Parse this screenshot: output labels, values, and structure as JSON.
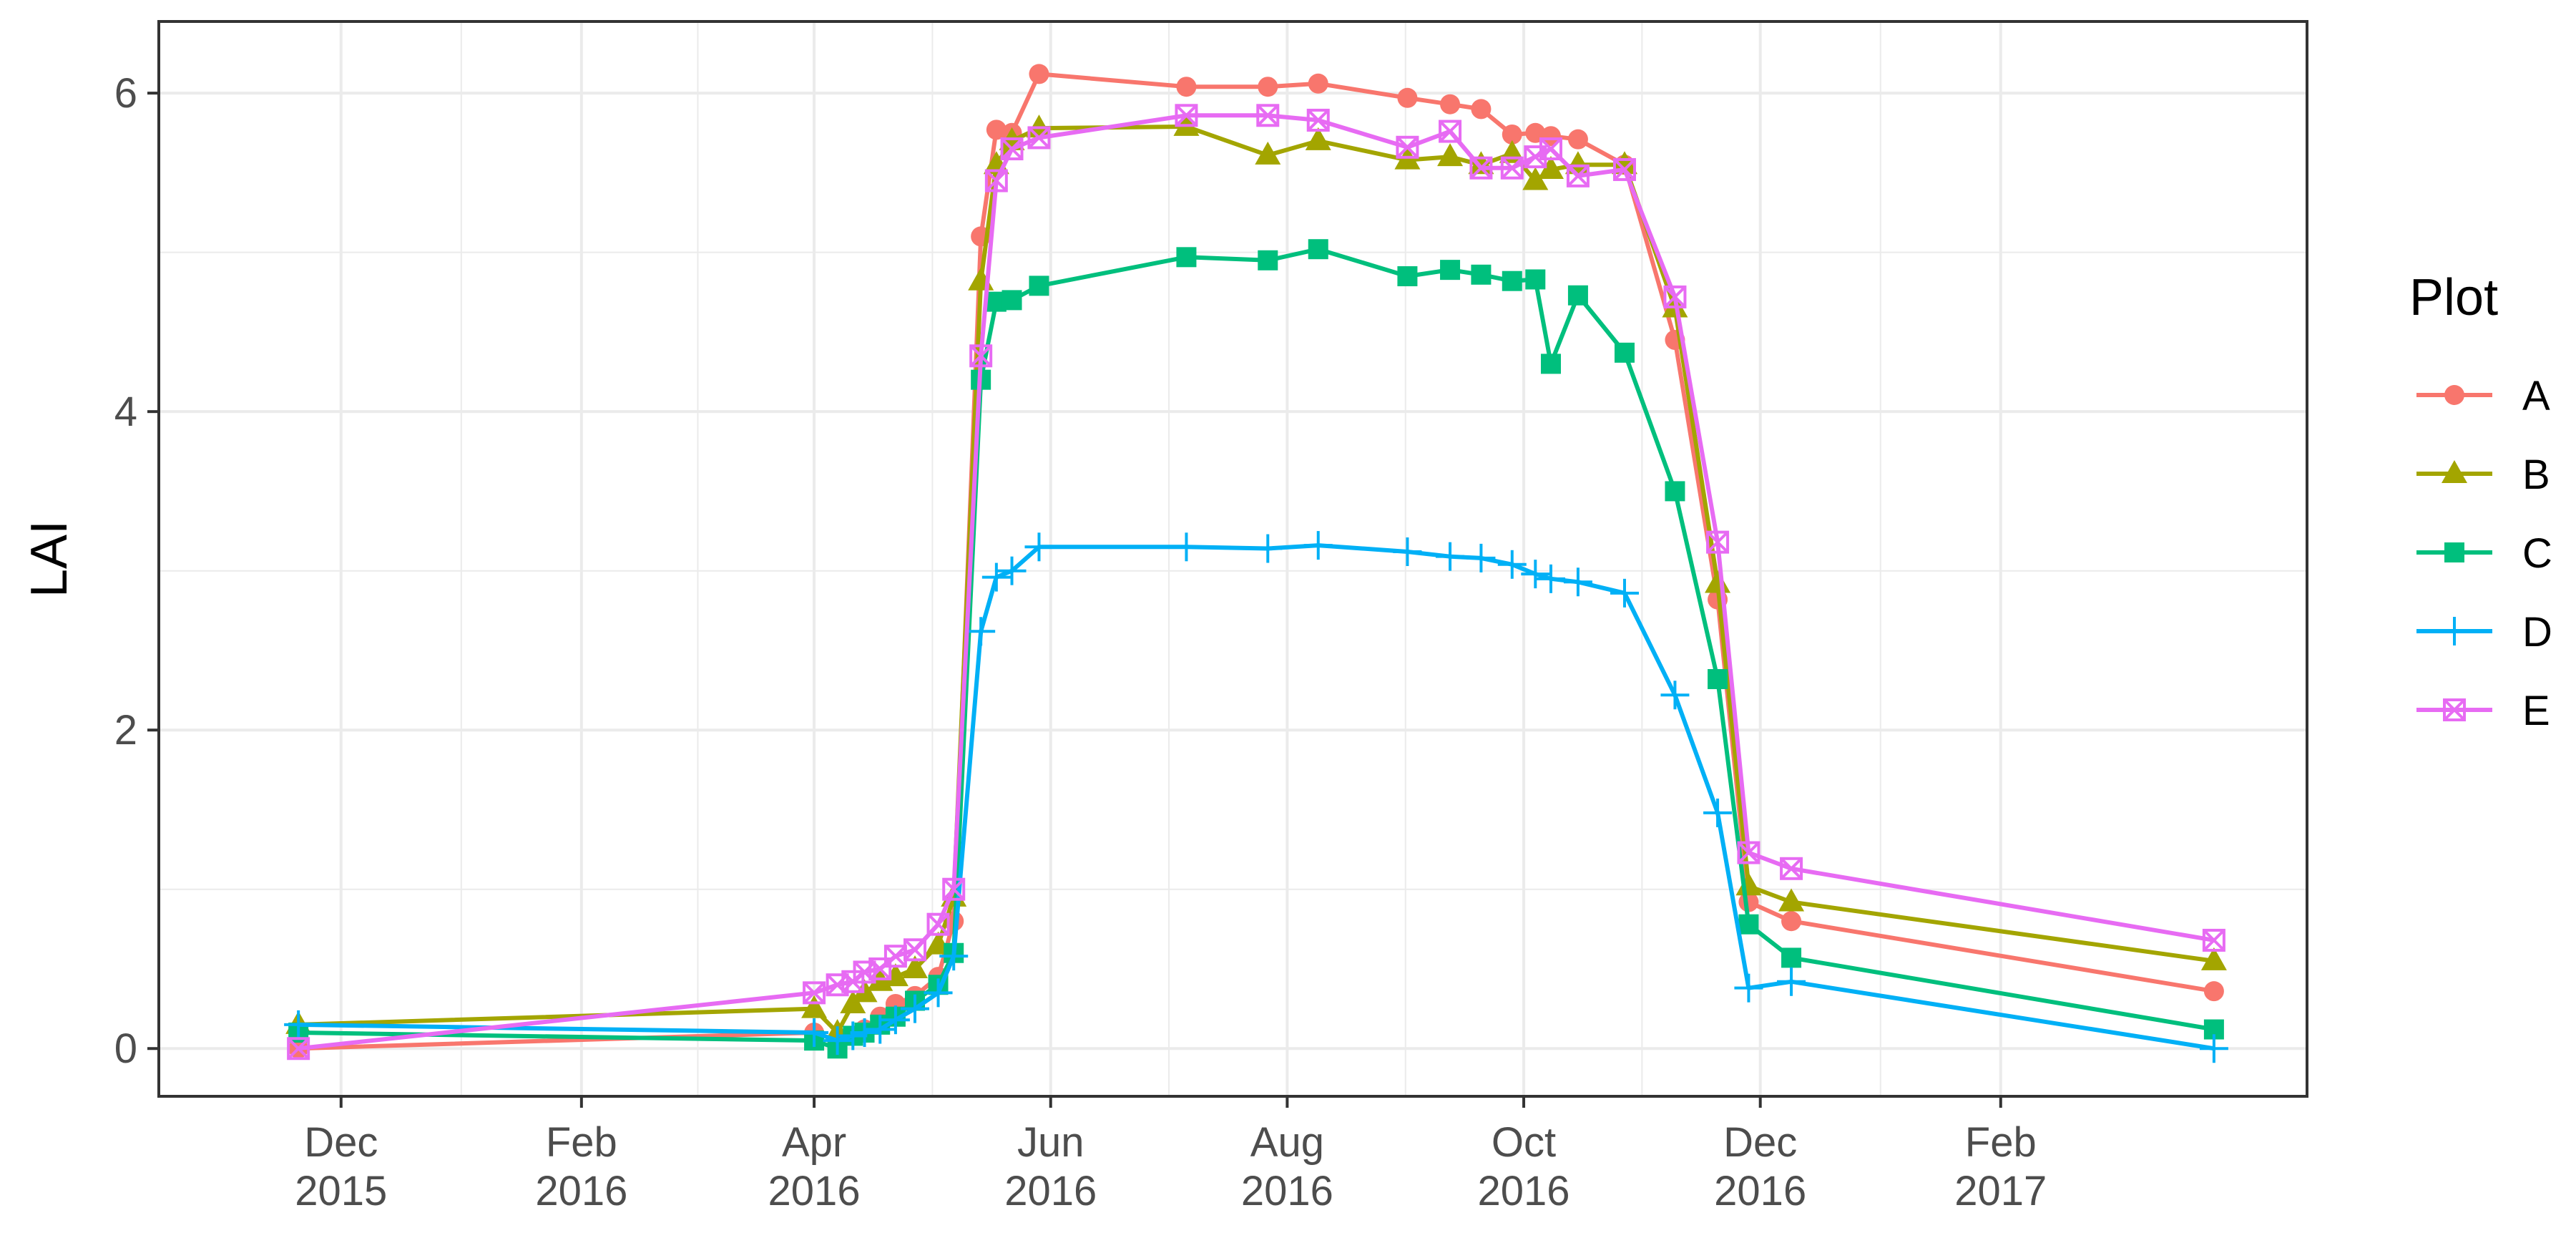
{
  "chart_data": {
    "type": "line",
    "title": "",
    "xlabel": "",
    "ylabel": "LAI",
    "xlim": [
      "2015-10-15",
      "2017-04-21"
    ],
    "ylim": [
      -0.3,
      6.45
    ],
    "y_ticks": [
      0,
      2,
      4,
      6
    ],
    "x_ticks": [
      {
        "date": "2015-12-01",
        "label_line1": "Dec",
        "label_line2": "2015"
      },
      {
        "date": "2016-02-01",
        "label_line1": "Feb",
        "label_line2": "2016"
      },
      {
        "date": "2016-04-01",
        "label_line1": "Apr",
        "label_line2": "2016"
      },
      {
        "date": "2016-06-01",
        "label_line1": "Jun",
        "label_line2": "2016"
      },
      {
        "date": "2016-08-01",
        "label_line1": "Aug",
        "label_line2": "2016"
      },
      {
        "date": "2016-10-01",
        "label_line1": "Oct",
        "label_line2": "2016"
      },
      {
        "date": "2016-12-01",
        "label_line1": "Dec",
        "label_line2": "2016"
      },
      {
        "date": "2017-02-01",
        "label_line1": "Feb",
        "label_line2": "2017"
      }
    ],
    "grid": true,
    "legend": {
      "title": "Plot",
      "position": "right"
    },
    "series": [
      {
        "name": "A",
        "color": "#F8766D",
        "marker": "circle",
        "x": [
          "2015-11-20",
          "2016-04-01",
          "2016-04-07",
          "2016-04-11",
          "2016-04-14",
          "2016-04-18",
          "2016-04-22",
          "2016-04-27",
          "2016-05-03",
          "2016-05-07",
          "2016-05-14",
          "2016-05-18",
          "2016-05-22",
          "2016-05-29",
          "2016-07-06",
          "2016-07-27",
          "2016-08-09",
          "2016-09-01",
          "2016-09-12",
          "2016-09-20",
          "2016-09-28",
          "2016-10-04",
          "2016-10-08",
          "2016-10-15",
          "2016-10-27",
          "2016-11-09",
          "2016-11-20",
          "2016-11-28",
          "2016-12-09",
          "2017-03-28"
        ],
        "y": [
          0.0,
          0.1,
          0.05,
          0.08,
          0.12,
          0.2,
          0.28,
          0.33,
          0.45,
          0.8,
          5.1,
          5.77,
          5.75,
          6.12,
          6.04,
          6.04,
          6.06,
          5.97,
          5.93,
          5.9,
          5.74,
          5.75,
          5.73,
          5.71,
          5.55,
          4.45,
          2.82,
          0.92,
          0.8,
          0.36
        ]
      },
      {
        "name": "B",
        "color": "#A3A500",
        "marker": "triangle",
        "x": [
          "2015-11-20",
          "2016-04-01",
          "2016-04-07",
          "2016-04-11",
          "2016-04-14",
          "2016-04-18",
          "2016-04-22",
          "2016-04-27",
          "2016-05-03",
          "2016-05-07",
          "2016-05-14",
          "2016-05-18",
          "2016-05-22",
          "2016-05-29",
          "2016-07-06",
          "2016-07-27",
          "2016-08-09",
          "2016-09-01",
          "2016-09-12",
          "2016-09-20",
          "2016-09-28",
          "2016-10-04",
          "2016-10-08",
          "2016-10-15",
          "2016-10-27",
          "2016-11-09",
          "2016-11-20",
          "2016-11-28",
          "2016-12-09",
          "2017-03-28"
        ],
        "y": [
          0.15,
          0.25,
          0.1,
          0.28,
          0.35,
          0.42,
          0.45,
          0.5,
          0.65,
          0.95,
          4.82,
          5.55,
          5.7,
          5.78,
          5.79,
          5.61,
          5.7,
          5.58,
          5.6,
          5.55,
          5.62,
          5.45,
          5.52,
          5.55,
          5.55,
          4.65,
          2.92,
          1.02,
          0.92,
          0.55
        ]
      },
      {
        "name": "C",
        "color": "#00BF7D",
        "marker": "square",
        "x": [
          "2015-11-20",
          "2016-04-01",
          "2016-04-07",
          "2016-04-11",
          "2016-04-14",
          "2016-04-18",
          "2016-04-22",
          "2016-04-27",
          "2016-05-03",
          "2016-05-07",
          "2016-05-14",
          "2016-05-18",
          "2016-05-22",
          "2016-05-29",
          "2016-07-06",
          "2016-07-27",
          "2016-08-09",
          "2016-09-01",
          "2016-09-12",
          "2016-09-20",
          "2016-09-28",
          "2016-10-04",
          "2016-10-08",
          "2016-10-15",
          "2016-10-27",
          "2016-11-09",
          "2016-11-20",
          "2016-11-28",
          "2016-12-09",
          "2017-03-28"
        ],
        "y": [
          0.1,
          0.05,
          0.0,
          0.08,
          0.1,
          0.15,
          0.2,
          0.3,
          0.4,
          0.6,
          4.2,
          4.69,
          4.7,
          4.79,
          4.97,
          4.95,
          5.02,
          4.85,
          4.89,
          4.86,
          4.82,
          4.83,
          4.3,
          4.73,
          4.37,
          3.5,
          2.32,
          0.78,
          0.57,
          0.12
        ]
      },
      {
        "name": "D",
        "color": "#00B0F6",
        "marker": "plus",
        "x": [
          "2015-11-20",
          "2016-04-01",
          "2016-04-07",
          "2016-04-11",
          "2016-04-14",
          "2016-04-18",
          "2016-04-22",
          "2016-04-27",
          "2016-05-03",
          "2016-05-07",
          "2016-05-14",
          "2016-05-18",
          "2016-05-22",
          "2016-05-29",
          "2016-07-06",
          "2016-07-27",
          "2016-08-09",
          "2016-09-01",
          "2016-09-12",
          "2016-09-20",
          "2016-09-28",
          "2016-10-04",
          "2016-10-08",
          "2016-10-15",
          "2016-10-27",
          "2016-11-09",
          "2016-11-20",
          "2016-11-28",
          "2016-12-09",
          "2017-03-28"
        ],
        "y": [
          0.15,
          0.1,
          0.05,
          0.08,
          0.1,
          0.12,
          0.18,
          0.25,
          0.35,
          0.58,
          2.62,
          2.96,
          3.0,
          3.15,
          3.15,
          3.14,
          3.16,
          3.12,
          3.09,
          3.08,
          3.04,
          2.98,
          2.95,
          2.93,
          2.86,
          2.22,
          1.48,
          0.38,
          0.42,
          0.0
        ]
      },
      {
        "name": "E",
        "color": "#E76BF3",
        "marker": "square-x",
        "x": [
          "2015-11-20",
          "2016-04-01",
          "2016-04-07",
          "2016-04-11",
          "2016-04-14",
          "2016-04-18",
          "2016-04-22",
          "2016-04-27",
          "2016-05-03",
          "2016-05-07",
          "2016-05-14",
          "2016-05-18",
          "2016-05-22",
          "2016-05-29",
          "2016-07-06",
          "2016-07-27",
          "2016-08-09",
          "2016-09-01",
          "2016-09-12",
          "2016-09-20",
          "2016-09-28",
          "2016-10-04",
          "2016-10-08",
          "2016-10-15",
          "2016-10-27",
          "2016-11-09",
          "2016-11-20",
          "2016-11-28",
          "2016-12-09",
          "2017-03-28"
        ],
        "y": [
          0.0,
          0.35,
          0.4,
          0.42,
          0.48,
          0.5,
          0.58,
          0.62,
          0.78,
          1.0,
          4.35,
          5.45,
          5.65,
          5.72,
          5.86,
          5.86,
          5.83,
          5.66,
          5.76,
          5.53,
          5.53,
          5.6,
          5.65,
          5.48,
          5.52,
          4.72,
          3.18,
          1.23,
          1.13,
          0.68
        ]
      }
    ]
  }
}
